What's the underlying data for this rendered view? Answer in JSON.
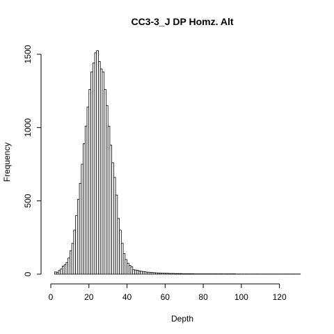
{
  "chart_data": {
    "type": "bar",
    "title": "CC3-3_J DP Homz. Alt",
    "xlabel": "Depth",
    "ylabel": "Frequency",
    "xlim": [
      0,
      130
    ],
    "ylim": [
      0,
      1500
    ],
    "x_ticks": [
      0,
      20,
      40,
      60,
      80,
      100,
      120
    ],
    "y_ticks": [
      0,
      500,
      1000,
      1500
    ],
    "bin_width": 1,
    "bin_start": 2,
    "values": [
      15,
      12,
      25,
      35,
      55,
      65,
      80,
      110,
      160,
      210,
      300,
      400,
      510,
      620,
      750,
      890,
      1010,
      1140,
      1260,
      1380,
      1440,
      1510,
      1525,
      1450,
      1400,
      1380,
      1260,
      1150,
      1010,
      880,
      760,
      660,
      540,
      380,
      300,
      210,
      140,
      100,
      75,
      60,
      50,
      30,
      28,
      26,
      22,
      20,
      18,
      16,
      14,
      13,
      12,
      11,
      10,
      9,
      8,
      8,
      7,
      7,
      6,
      6,
      5,
      5,
      5,
      4,
      4,
      4,
      4,
      3,
      3,
      3,
      3,
      3,
      3,
      2,
      2,
      2,
      2,
      2,
      2,
      2,
      2,
      2,
      2,
      2,
      2,
      2,
      2,
      2,
      2,
      2,
      2,
      2,
      2,
      2,
      2,
      1,
      1,
      1,
      1,
      1,
      1,
      1,
      1,
      1,
      1,
      1,
      1,
      1,
      1,
      1,
      1,
      1,
      1,
      1,
      1,
      1,
      1,
      1,
      1,
      1,
      1,
      1,
      1,
      1,
      1,
      1,
      1,
      1,
      1
    ]
  }
}
